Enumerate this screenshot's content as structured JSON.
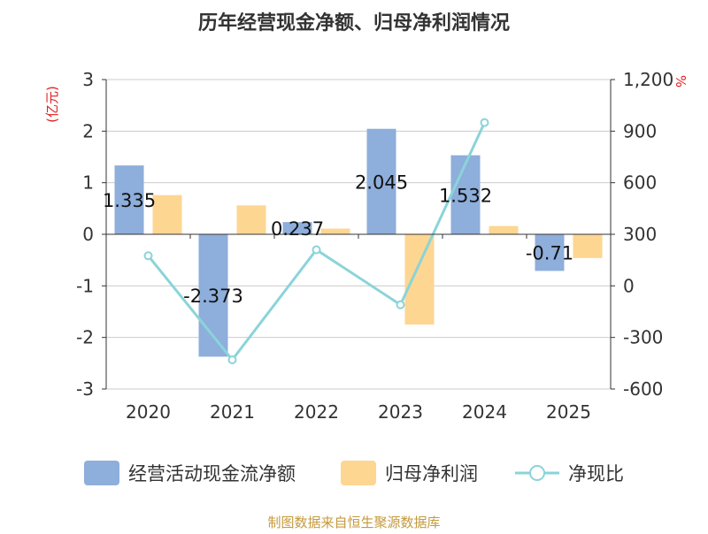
{
  "chart_data": {
    "type": "bar",
    "title": "历年经营现金净额、归母净利润情况",
    "categories": [
      "2020",
      "2021",
      "2022",
      "2023",
      "2024",
      "2025"
    ],
    "y_left": {
      "label": "(亿元)",
      "ylim": [
        -3,
        3
      ],
      "ticks": [
        "3",
        "2",
        "1",
        "0",
        "-1",
        "-2",
        "-3"
      ],
      "tick_values": [
        3,
        2,
        1,
        0,
        -1,
        -2,
        -3
      ]
    },
    "y_right": {
      "label": "%",
      "ylim": [
        -600,
        1200
      ],
      "ticks": [
        "1,200",
        "900",
        "600",
        "300",
        "0",
        "-300",
        "-600"
      ],
      "tick_values": [
        1200,
        900,
        600,
        300,
        0,
        -300,
        -600
      ]
    },
    "series": [
      {
        "name": "经营活动现金流净额",
        "kind": "bar",
        "axis": "left",
        "color": "#8eaedb",
        "values": [
          1.335,
          -2.373,
          0.237,
          2.045,
          1.532,
          -0.71
        ],
        "labels": [
          "1.335",
          "-2.373",
          "0.237",
          "2.045",
          "1.532",
          "-0.71"
        ]
      },
      {
        "name": "归母净利润",
        "kind": "bar",
        "axis": "left",
        "color": "#fdd692",
        "values": [
          0.76,
          0.56,
          0.11,
          -1.75,
          0.16,
          -0.46
        ]
      },
      {
        "name": "净现比",
        "kind": "line",
        "axis": "right",
        "color": "#8ad4d9",
        "values": [
          175,
          -430,
          210,
          -110,
          950,
          null
        ]
      }
    ],
    "legend": {
      "position": "bottom"
    },
    "grid": true,
    "source": "制图数据来自恒生聚源数据库"
  }
}
